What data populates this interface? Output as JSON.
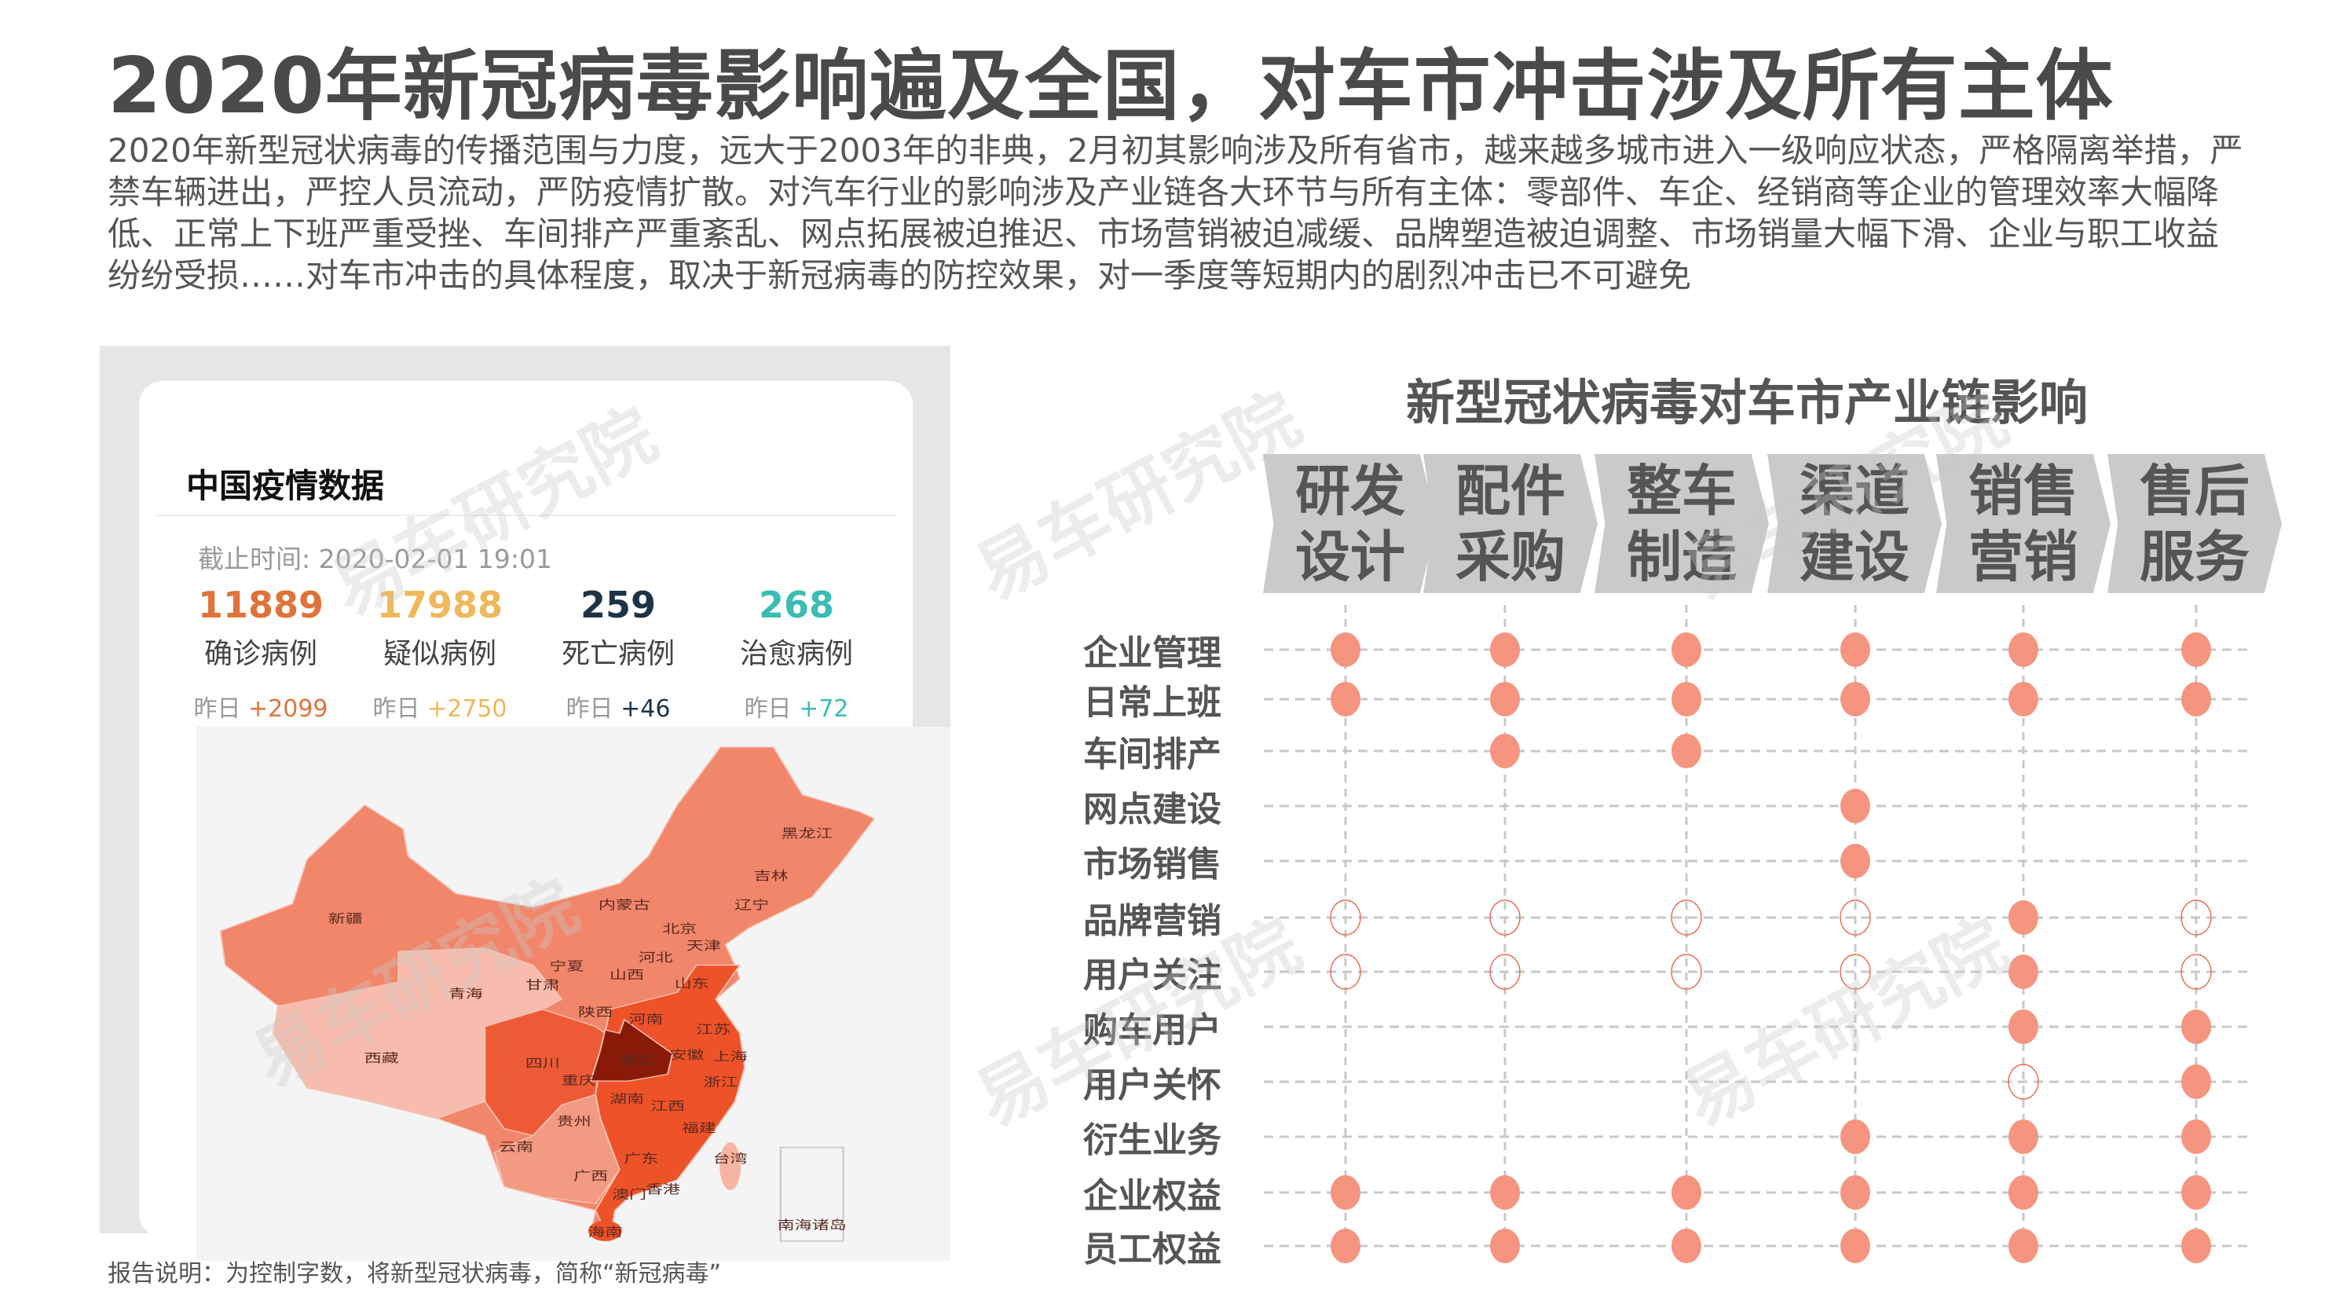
{
  "title": "2020年新冠病毒影响遍及全国，对车市冲击涉及所有主体",
  "paragraph": "2020年新型冠状病毒的传播范围与力度，远大于2003年的非典，2月初其影响涉及所有省市，越来越多城市进入一级响应状态，严格隔离举措，严禁车辆进出，严控人员流动，严防疫情扩散。对汽车行业的影响涉及产业链各大环节与所有主体：零部件、车企、经销商等企业的管理效率大幅降低、正常上下班严重受挫、车间排产严重紊乱、网点拓展被迫推迟、市场营销被迫减缓、品牌塑造被迫调整、市场销量大幅下滑、企业与职工收益纷纷受损……对车市冲击的具体程度，取决于新冠病毒的防控效果，对一季度等短期内的剧烈冲击已不可避免",
  "epidemic_card": {
    "title": "中国疫情数据",
    "cutoff": "截止时间: 2020-02-01 19:01",
    "stats": [
      {
        "value": "11889",
        "label": "确诊病例",
        "delta_prefix": "昨日",
        "delta": "+2099",
        "color": "#e0733a"
      },
      {
        "value": "17988",
        "label": "疑似病例",
        "delta_prefix": "昨日",
        "delta": "+2750",
        "color": "#efb85a"
      },
      {
        "value": "259",
        "label": "死亡病例",
        "delta_prefix": "昨日",
        "delta": "+46",
        "color": "#1d3346"
      },
      {
        "value": "268",
        "label": "治愈病例",
        "delta_prefix": "昨日",
        "delta": "+72",
        "color": "#3bbcb4"
      }
    ],
    "map_labels": [
      "新疆",
      "西藏",
      "青海",
      "甘肃",
      "宁夏",
      "内蒙古",
      "黑龙江",
      "吉林",
      "辽宁",
      "北京",
      "天津",
      "河北",
      "山西",
      "山东",
      "陕西",
      "河南",
      "江苏",
      "四川",
      "湖北",
      "安徽",
      "上海",
      "重庆",
      "浙江",
      "湖南",
      "江西",
      "贵州",
      "福建",
      "云南",
      "广东",
      "广西",
      "台湾",
      "香港",
      "澳门",
      "海南",
      "南海诸岛"
    ]
  },
  "footnote": "报告说明：为控制字数，将新型冠状病毒，简称“新冠病毒”",
  "watermark": "易车研究院",
  "matrix": {
    "title": "新型冠状病毒对车市产业链影响",
    "columns": [
      [
        "研发",
        "设计"
      ],
      [
        "配件",
        "采购"
      ],
      [
        "整车",
        "制造"
      ],
      [
        "渠道",
        "建设"
      ],
      [
        "销售",
        "营销"
      ],
      [
        "售后",
        "服务"
      ]
    ],
    "legend_encoding": {
      "filled": 1,
      "hollow": 0.5,
      "none": 0
    },
    "rows": [
      {
        "label": "企业管理",
        "values": [
          1,
          1,
          1,
          1,
          1,
          1
        ]
      },
      {
        "label": "日常上班",
        "values": [
          1,
          1,
          1,
          1,
          1,
          1
        ]
      },
      {
        "label": "车间排产",
        "values": [
          0,
          1,
          1,
          0,
          0,
          0
        ]
      },
      {
        "label": "网点建设",
        "values": [
          0,
          0,
          0,
          1,
          0,
          0
        ]
      },
      {
        "label": "市场销售",
        "values": [
          0,
          0,
          0,
          1,
          0,
          0
        ]
      },
      {
        "label": "品牌营销",
        "values": [
          0.5,
          0.5,
          0.5,
          0.5,
          1,
          0.5
        ]
      },
      {
        "label": "用户关注",
        "values": [
          0.5,
          0.5,
          0.5,
          0.5,
          1,
          0.5
        ]
      },
      {
        "label": "购车用户",
        "values": [
          0,
          0,
          0,
          0,
          1,
          1
        ]
      },
      {
        "label": "用户关怀",
        "values": [
          0,
          0,
          0,
          0,
          0.5,
          1
        ]
      },
      {
        "label": "衍生业务",
        "values": [
          0,
          0,
          0,
          1,
          1,
          1
        ]
      },
      {
        "label": "企业权益",
        "values": [
          1,
          1,
          1,
          1,
          1,
          1
        ]
      },
      {
        "label": "员工权益",
        "values": [
          1,
          1,
          1,
          1,
          1,
          1
        ]
      }
    ],
    "dot_color": "#f59580",
    "line_color": "#c8c8c8"
  }
}
